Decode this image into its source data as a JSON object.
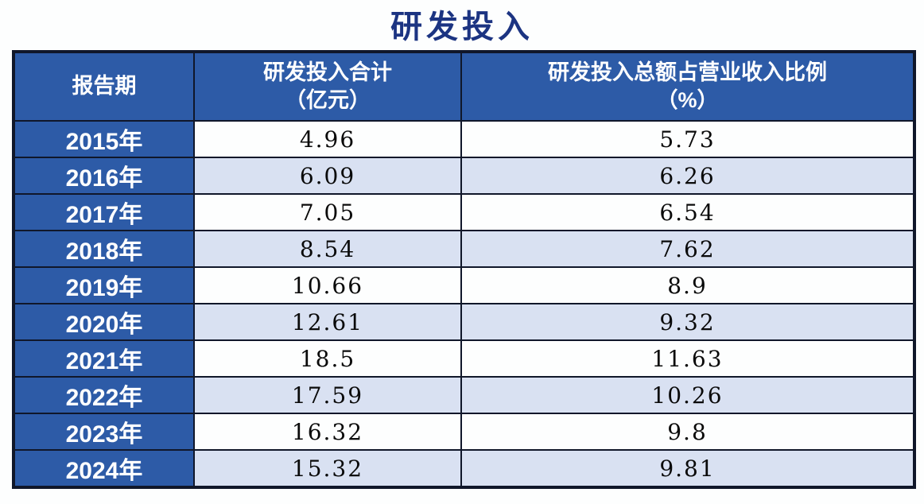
{
  "title": "研发投入",
  "table": {
    "headers": [
      {
        "line1": "报告期",
        "line2": ""
      },
      {
        "line1": "研发投入合计",
        "line2": "（亿元）"
      },
      {
        "line1": "研发投入总额占营业收入比例",
        "line2": "（%）"
      }
    ],
    "rows": [
      {
        "period": "2015年",
        "total": "4.96",
        "ratio": "5.73"
      },
      {
        "period": "2016年",
        "total": "6.09",
        "ratio": "6.26"
      },
      {
        "period": "2017年",
        "total": "7.05",
        "ratio": "6.54"
      },
      {
        "period": "2018年",
        "total": "8.54",
        "ratio": "7.62"
      },
      {
        "period": "2019年",
        "total": "10.66",
        "ratio": "8.9"
      },
      {
        "period": "2020年",
        "total": "12.61",
        "ratio": "9.32"
      },
      {
        "period": "2021年",
        "total": "18.5",
        "ratio": "11.63"
      },
      {
        "period": "2022年",
        "total": "17.59",
        "ratio": "10.26"
      },
      {
        "period": "2023年",
        "total": "16.32",
        "ratio": "9.8"
      },
      {
        "period": "2024年",
        "total": "15.32",
        "ratio": "9.81"
      }
    ]
  },
  "colors": {
    "header_blue": "#2d5ba7",
    "row_alt_blue": "#d9e1f2",
    "row_white": "#fdfefe",
    "border_dark": "#10172a",
    "title_navy": "#1c3482",
    "header_text": "#ffffff",
    "cell_text": "#0a0a0a"
  },
  "chart_data": {
    "type": "table",
    "title": "研发投入",
    "columns": [
      "报告期",
      "研发投入合计（亿元）",
      "研发投入总额占营业收入比例（%）"
    ],
    "categories": [
      "2015年",
      "2016年",
      "2017年",
      "2018年",
      "2019年",
      "2020年",
      "2021年",
      "2022年",
      "2023年",
      "2024年"
    ],
    "series": [
      {
        "name": "研发投入合计（亿元）",
        "values": [
          4.96,
          6.09,
          7.05,
          8.54,
          10.66,
          12.61,
          18.5,
          17.59,
          16.32,
          15.32
        ]
      },
      {
        "name": "研发投入总额占营业收入比例（%）",
        "values": [
          5.73,
          6.26,
          6.54,
          7.62,
          8.9,
          9.32,
          11.63,
          10.26,
          9.8,
          9.81
        ]
      }
    ]
  }
}
